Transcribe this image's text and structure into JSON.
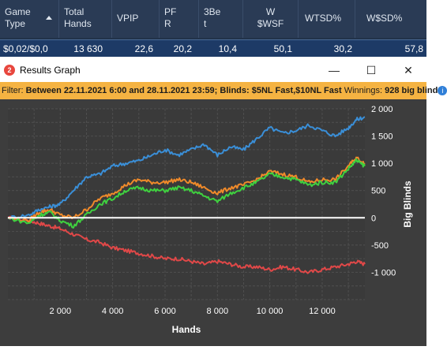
{
  "stats_table": {
    "headers": [
      {
        "line1": "Game",
        "line2": "Type"
      },
      {
        "line1": "Total",
        "line2": "Hands"
      },
      {
        "line1": "VPIP",
        "line2": ""
      },
      {
        "line1": "PF",
        "line2": "R"
      },
      {
        "line1": "3Be",
        "line2": "t"
      },
      {
        "line1": "W",
        "line2": "$WSF"
      },
      {
        "line1": "WTSD%",
        "line2": ""
      },
      {
        "line1": "W$SD%",
        "line2": ""
      }
    ],
    "row": [
      "$0,02/$0,0",
      "13 630",
      "22,6",
      "20,2",
      "10,4",
      "50,1",
      "30,2",
      "57,8"
    ]
  },
  "window": {
    "title": "Results Graph",
    "icon_letter": "2",
    "minimize": "—",
    "maximize": "☐",
    "close": "✕"
  },
  "filter": {
    "prefix": "Filter: ",
    "between": "Between 22.11.2021 6:00 and 28.11.2021 23:59; Blinds: $5NL Fast,$10NL Fast",
    "winnings_label": " Winnings: ",
    "winnings_value": "928 big blind",
    "info_icon": "i"
  },
  "chart_data": {
    "type": "line",
    "xlabel": "Hands",
    "ylabel": "Big Blinds",
    "xlim": [
      0,
      13630
    ],
    "ylim": [
      -1500,
      2000
    ],
    "x_ticks": [
      2000,
      4000,
      6000,
      8000,
      10000,
      12000
    ],
    "x_tick_labels": [
      "2 000",
      "4 000",
      "6 000",
      "8 000",
      "10 000",
      "12 000"
    ],
    "y_ticks": [
      2000,
      1500,
      1000,
      500,
      0,
      -500,
      -1000
    ],
    "y_tick_labels": [
      "2 000",
      "1 500",
      "1 000",
      "500",
      "0",
      "-500",
      "-1 000"
    ],
    "grid": true,
    "colors": {
      "blue": "#3a8fd8",
      "orange": "#f08a2a",
      "green": "#3fd13f",
      "red": "#e04848",
      "zero": "#ffffff"
    },
    "series": [
      {
        "color": "blue",
        "x": [
          0,
          800,
          1200,
          1600,
          2000,
          2500,
          3000,
          3500,
          4000,
          4500,
          5000,
          5500,
          6000,
          6500,
          7000,
          7500,
          8000,
          8500,
          9000,
          9500,
          10000,
          10500,
          11000,
          11500,
          12000,
          12500,
          13000,
          13300,
          13630
        ],
        "y": [
          0,
          50,
          150,
          200,
          250,
          500,
          750,
          800,
          950,
          1000,
          1050,
          1150,
          1250,
          1150,
          1250,
          1350,
          1150,
          1300,
          1250,
          1450,
          1650,
          1550,
          1600,
          1700,
          1600,
          1500,
          1650,
          1800,
          1850
        ]
      },
      {
        "color": "orange",
        "x": [
          0,
          800,
          1200,
          1600,
          2000,
          2500,
          3000,
          3500,
          4000,
          4500,
          5000,
          5500,
          6000,
          6500,
          7000,
          7500,
          8000,
          8500,
          9000,
          9500,
          10000,
          10500,
          11000,
          11500,
          12000,
          12500,
          13000,
          13300,
          13630
        ],
        "y": [
          0,
          -50,
          100,
          150,
          50,
          0,
          150,
          350,
          450,
          600,
          700,
          650,
          650,
          700,
          650,
          550,
          450,
          550,
          600,
          700,
          850,
          800,
          750,
          650,
          700,
          700,
          950,
          1100,
          1000
        ]
      },
      {
        "color": "green",
        "x": [
          0,
          800,
          1200,
          1600,
          2000,
          2500,
          3000,
          3500,
          4000,
          4500,
          5000,
          5500,
          6000,
          6500,
          7000,
          7500,
          8000,
          8500,
          9000,
          9500,
          10000,
          10500,
          11000,
          11500,
          12000,
          12500,
          13000,
          13300,
          13630
        ],
        "y": [
          0,
          -100,
          50,
          100,
          -50,
          -150,
          50,
          250,
          350,
          500,
          550,
          500,
          500,
          550,
          500,
          400,
          300,
          450,
          550,
          650,
          800,
          750,
          700,
          600,
          650,
          650,
          900,
          1050,
          950
        ]
      },
      {
        "color": "red",
        "x": [
          0,
          800,
          1200,
          1600,
          2000,
          2500,
          3000,
          3500,
          4000,
          4500,
          5000,
          5500,
          6000,
          6500,
          7000,
          7500,
          8000,
          8500,
          9000,
          9500,
          10000,
          10500,
          11000,
          11500,
          12000,
          12500,
          13000,
          13300,
          13630
        ],
        "y": [
          0,
          -50,
          -100,
          -150,
          -200,
          -300,
          -400,
          -450,
          -550,
          -600,
          -650,
          -700,
          -750,
          -750,
          -800,
          -850,
          -800,
          -850,
          -900,
          -900,
          -950,
          -900,
          -950,
          -1000,
          -950,
          -900,
          -850,
          -800,
          -850
        ]
      }
    ]
  }
}
